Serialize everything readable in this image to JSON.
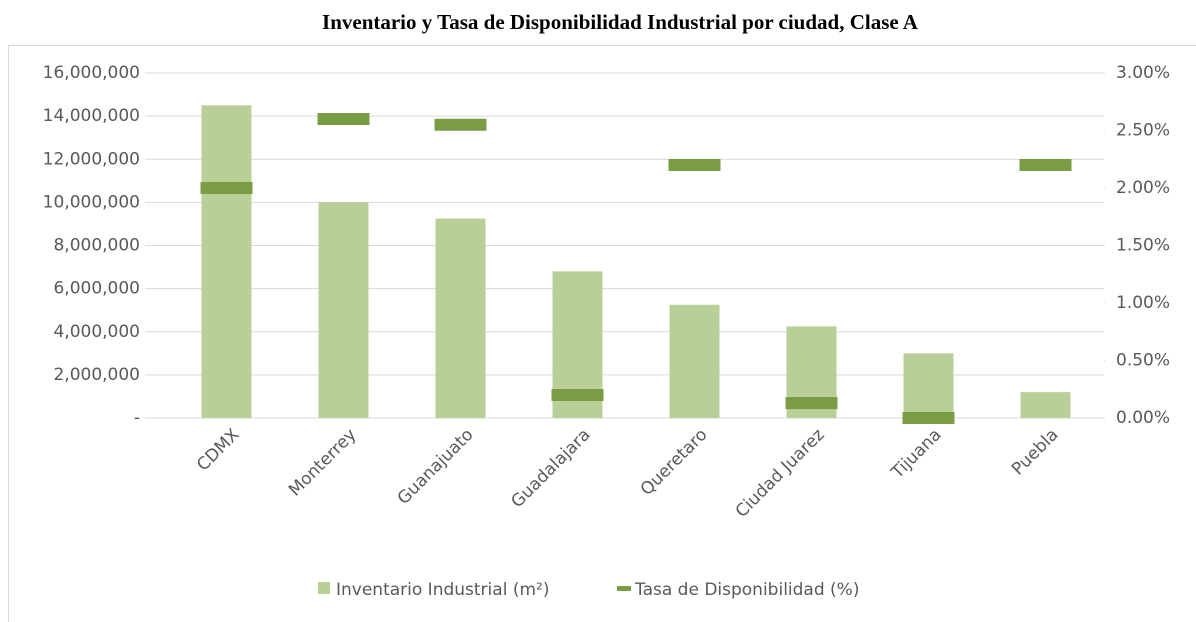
{
  "chart_data": {
    "type": "bar",
    "title": "Inventario y Tasa de Disponibilidad Industrial por ciudad, Clase A",
    "categories": [
      "CDMX",
      "Monterrey",
      "Guanajuato",
      "Guadalajara",
      "Queretaro",
      "Ciudad Juarez",
      "Tijuana",
      "Puebla"
    ],
    "series": [
      {
        "name": "Inventario Industrial (m²)",
        "type": "bar",
        "color": "#b8cf98",
        "values": [
          14500000,
          10000000,
          9250000,
          6800000,
          5250000,
          4250000,
          3000000,
          1200000
        ]
      },
      {
        "name": "Tasa de Disponibilidad (%)",
        "type": "marker",
        "axis": "y2",
        "color": "#7a9c45",
        "values": [
          2.0,
          2.6,
          2.55,
          0.2,
          2.2,
          0.13,
          0,
          2.2
        ]
      }
    ],
    "ylim": [
      0,
      16000000
    ],
    "yticks": [
      {
        "value": 0,
        "label": "-"
      },
      {
        "value": 2000000,
        "label": "2,000,000"
      },
      {
        "value": 4000000,
        "label": "4,000,000"
      },
      {
        "value": 6000000,
        "label": "6,000,000"
      },
      {
        "value": 8000000,
        "label": "8,000,000"
      },
      {
        "value": 10000000,
        "label": "10,000,000"
      },
      {
        "value": 12000000,
        "label": "12,000,000"
      },
      {
        "value": 14000000,
        "label": "14,000,000"
      },
      {
        "value": 16000000,
        "label": "16,000,000"
      }
    ],
    "y2lim": [
      0,
      3
    ],
    "y2ticks": [
      {
        "value": 0,
        "label": "0.00%"
      },
      {
        "value": 0.5,
        "label": "0.50%"
      },
      {
        "value": 1,
        "label": "1.00%"
      },
      {
        "value": 1.5,
        "label": "1.50%"
      },
      {
        "value": 2,
        "label": "2.00%"
      },
      {
        "value": 2.5,
        "label": "2.50%"
      },
      {
        "value": 3,
        "label": "3.00%"
      }
    ],
    "grid": true,
    "legend": "bottom"
  }
}
